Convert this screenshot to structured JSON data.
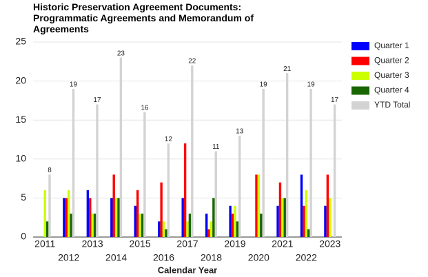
{
  "chart_data": {
    "type": "bar",
    "title": "Historic Preservation Agreement Documents: Programmatic Agreements and Memorandum of Agreements",
    "x_label": "Calendar Year",
    "categories": [
      "2011",
      "2012",
      "2013",
      "2014",
      "2015",
      "2016",
      "2017",
      "2018",
      "2019",
      "2020",
      "2021",
      "2022",
      "2023"
    ],
    "series": [
      {
        "name": "Quarter 1",
        "color": "#0000ff",
        "values": [
          0,
          5,
          6,
          5,
          4,
          2,
          5,
          3,
          4,
          0,
          4,
          8,
          4
        ]
      },
      {
        "name": "Quarter 2",
        "color": "#ff0000",
        "values": [
          0,
          5,
          5,
          8,
          6,
          7,
          12,
          1,
          3,
          8,
          7,
          4,
          8
        ]
      },
      {
        "name": "Quarter 3",
        "color": "#ccff00",
        "values": [
          6,
          6,
          3,
          5,
          3,
          2,
          2,
          2,
          4,
          8,
          5,
          6,
          5
        ]
      },
      {
        "name": "Quarter 4",
        "color": "#1a6600",
        "values": [
          2,
          3,
          3,
          5,
          3,
          1,
          3,
          5,
          2,
          3,
          5,
          1,
          0
        ]
      },
      {
        "name": "YTD Total",
        "color": "#d3d3d3",
        "values": [
          8,
          19,
          17,
          23,
          16,
          12,
          22,
          11,
          13,
          19,
          21,
          19,
          17
        ]
      }
    ],
    "data_labels_series": 4,
    "ylim": [
      0,
      25
    ],
    "yticks": [
      0,
      5,
      10,
      15,
      20,
      25
    ],
    "grid": true,
    "legend": "right"
  }
}
